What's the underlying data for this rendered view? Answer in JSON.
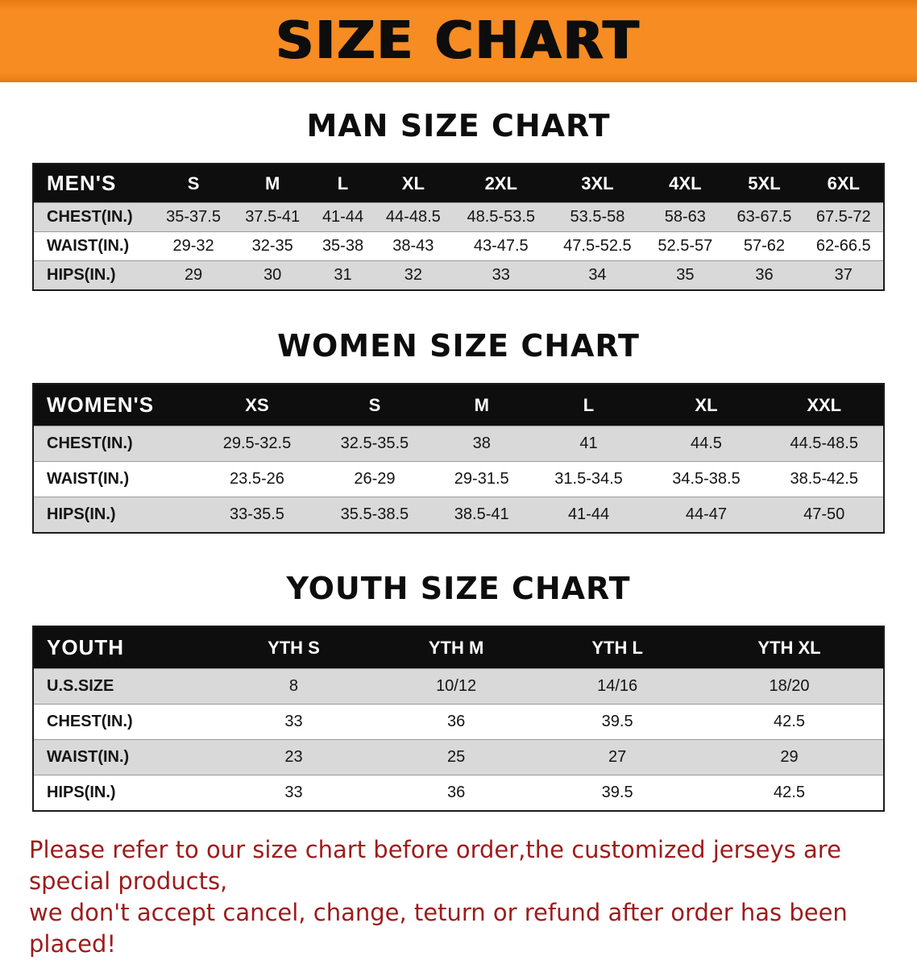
{
  "banner": {
    "title": "SIZE CHART",
    "bg_color": "#f68c22",
    "text_color": "#0d0d0d"
  },
  "sections": [
    {
      "id": "men",
      "heading": "MAN SIZE CHART",
      "table": {
        "header": [
          "MEN'S",
          "S",
          "M",
          "L",
          "XL",
          "2XL",
          "3XL",
          "4XL",
          "5XL",
          "6XL"
        ],
        "rows": [
          [
            "CHEST(IN.)",
            "35-37.5",
            "37.5-41",
            "41-44",
            "44-48.5",
            "48.5-53.5",
            "53.5-58",
            "58-63",
            "63-67.5",
            "67.5-72"
          ],
          [
            "WAIST(IN.)",
            "29-32",
            "32-35",
            "35-38",
            "38-43",
            "43-47.5",
            "47.5-52.5",
            "52.5-57",
            "57-62",
            "62-66.5"
          ],
          [
            "HIPS(IN.)",
            "29",
            "30",
            "31",
            "32",
            "33",
            "34",
            "35",
            "36",
            "37"
          ]
        ]
      }
    },
    {
      "id": "women",
      "heading": "WOMEN SIZE CHART",
      "table": {
        "header": [
          "WOMEN'S",
          "XS",
          "S",
          "M",
          "L",
          "XL",
          "XXL"
        ],
        "rows": [
          [
            "CHEST(IN.)",
            "29.5-32.5",
            "32.5-35.5",
            "38",
            "41",
            "44.5",
            "44.5-48.5"
          ],
          [
            "WAIST(IN.)",
            "23.5-26",
            "26-29",
            "29-31.5",
            "31.5-34.5",
            "34.5-38.5",
            "38.5-42.5"
          ],
          [
            "HIPS(IN.)",
            "33-35.5",
            "35.5-38.5",
            "38.5-41",
            "41-44",
            "44-47",
            "47-50"
          ]
        ]
      }
    },
    {
      "id": "youth",
      "heading": "YOUTH SIZE CHART",
      "table": {
        "header": [
          "YOUTH",
          "YTH S",
          "YTH M",
          "YTH L",
          "YTH XL"
        ],
        "rows": [
          [
            "U.S.SIZE",
            "8",
            "10/12",
            "14/16",
            "18/20"
          ],
          [
            "CHEST(IN.)",
            "33",
            "36",
            "39.5",
            "42.5"
          ],
          [
            "WAIST(IN.)",
            "23",
            "25",
            "27",
            "29"
          ],
          [
            "HIPS(IN.)",
            "33",
            "36",
            "39.5",
            "42.5"
          ]
        ]
      }
    }
  ],
  "footer": {
    "line1": "Please refer to our size chart before order,the customized jerseys are special products,",
    "line2": "we don't accept cancel, change, teturn or refund after order has been placed!",
    "text_color": "#9e1b1b"
  }
}
